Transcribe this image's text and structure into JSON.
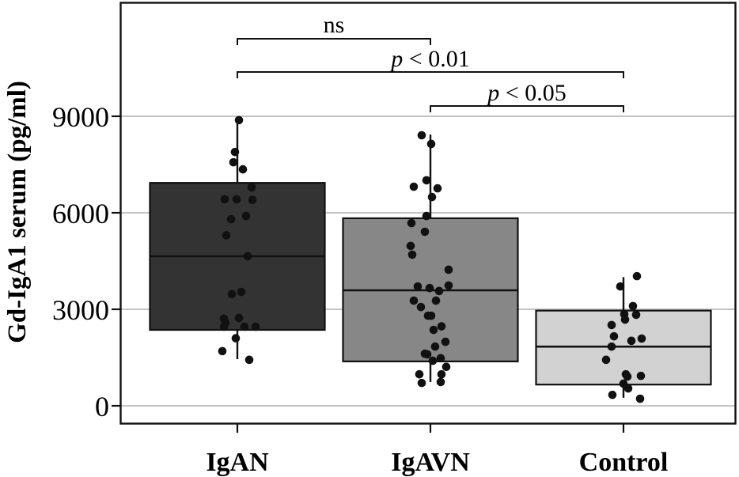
{
  "chart_data": {
    "type": "boxplot",
    "title": "",
    "xlabel": "",
    "ylabel": "Gd-IgA1 serum (pg/ml)",
    "yticks": [
      0,
      3000,
      6000,
      9000
    ],
    "ylim": [
      -600,
      12500
    ],
    "grid": "horizontal",
    "grid_color": "#c3c3c3",
    "axis_color": "#111111",
    "point_color": "#111111",
    "legend": "none",
    "categories": [
      "IgAN",
      "IgAVN",
      "Control"
    ],
    "groups": [
      {
        "label": "IgAN",
        "fill": "#333333",
        "stats": {
          "whisker_low": 1450,
          "q1": 2360,
          "median": 4650,
          "q3": 6930,
          "whisker_high": 8880
        },
        "points": [
          [
            2,
            8880
          ],
          [
            -3,
            7890
          ],
          [
            -5,
            7570
          ],
          [
            7,
            7350
          ],
          [
            18,
            6790
          ],
          [
            -16,
            6420
          ],
          [
            -1,
            6420
          ],
          [
            19,
            6400
          ],
          [
            11,
            5900
          ],
          [
            -8,
            5800
          ],
          [
            -14,
            5300
          ],
          [
            13,
            4650
          ],
          [
            5,
            3540
          ],
          [
            -7,
            3470
          ],
          [
            2,
            2730
          ],
          [
            -17,
            2710
          ],
          [
            -15,
            2580
          ],
          [
            -17,
            2460
          ],
          [
            9,
            2460
          ],
          [
            23,
            2460
          ],
          [
            -2,
            2100
          ],
          [
            -19,
            1700
          ],
          [
            15,
            1430
          ]
        ]
      },
      {
        "label": "IgAVN",
        "fill": "#878787",
        "stats": {
          "whisker_low": 740,
          "q1": 1380,
          "median": 3590,
          "q3": 5830,
          "whisker_high": 8430
        },
        "points": [
          [
            -11,
            8410
          ],
          [
            1,
            8140
          ],
          [
            -5,
            7010
          ],
          [
            -21,
            6810
          ],
          [
            9,
            6760
          ],
          [
            2,
            6490
          ],
          [
            -5,
            5900
          ],
          [
            -24,
            5680
          ],
          [
            -7,
            5410
          ],
          [
            -25,
            4970
          ],
          [
            -23,
            4700
          ],
          [
            23,
            4230
          ],
          [
            23,
            3740
          ],
          [
            -16,
            3710
          ],
          [
            -1,
            3660
          ],
          [
            11,
            3570
          ],
          [
            -21,
            3270
          ],
          [
            7,
            3270
          ],
          [
            -12,
            3070
          ],
          [
            -3,
            2800
          ],
          [
            1,
            2800
          ],
          [
            14,
            2470
          ],
          [
            4,
            2360
          ],
          [
            19,
            1990
          ],
          [
            6,
            1840
          ],
          [
            -7,
            1620
          ],
          [
            -4,
            1600
          ],
          [
            13,
            1480
          ],
          [
            3,
            1400
          ],
          [
            20,
            1210
          ],
          [
            -14,
            980
          ],
          [
            14,
            980
          ],
          [
            13,
            740
          ],
          [
            -11,
            710
          ]
        ]
      },
      {
        "label": "Control",
        "fill": "#d2d2d2",
        "stats": {
          "whisker_low": 250,
          "q1": 660,
          "median": 1840,
          "q3": 2960,
          "whisker_high": 4000
        },
        "points": [
          [
            17,
            4030
          ],
          [
            -4,
            3710
          ],
          [
            12,
            3100
          ],
          [
            1,
            2850
          ],
          [
            16,
            2830
          ],
          [
            2,
            2680
          ],
          [
            -15,
            2510
          ],
          [
            -12,
            2160
          ],
          [
            23,
            2090
          ],
          [
            10,
            2020
          ],
          [
            -15,
            1840
          ],
          [
            -22,
            1430
          ],
          [
            3,
            980
          ],
          [
            22,
            930
          ],
          [
            5,
            910
          ],
          [
            0,
            690
          ],
          [
            6,
            540
          ],
          [
            -14,
            340
          ],
          [
            21,
            220
          ]
        ]
      }
    ],
    "annotations": [
      {
        "label": "ns",
        "label_italic": "",
        "label_rest": "ns",
        "from": "IgAN",
        "to": "IgAVN"
      },
      {
        "label": "p < 0.01",
        "label_italic": "p",
        "label_rest": " < 0.01",
        "from": "IgAN",
        "to": "Control"
      },
      {
        "label": "p < 0.05",
        "label_italic": "p",
        "label_rest": " < 0.05",
        "from": "IgAVN",
        "to": "Control"
      }
    ]
  }
}
